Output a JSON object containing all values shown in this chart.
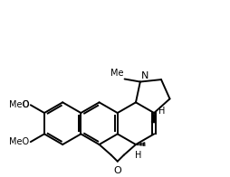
{
  "bg_color": "#ffffff",
  "line_color": "#000000",
  "lw": 1.4,
  "fs": 7.0,
  "figsize": [
    2.54,
    1.96
  ],
  "dpi": 100,
  "xlim": [
    -1.5,
    8.5
  ],
  "ylim": [
    -2.2,
    5.8
  ]
}
